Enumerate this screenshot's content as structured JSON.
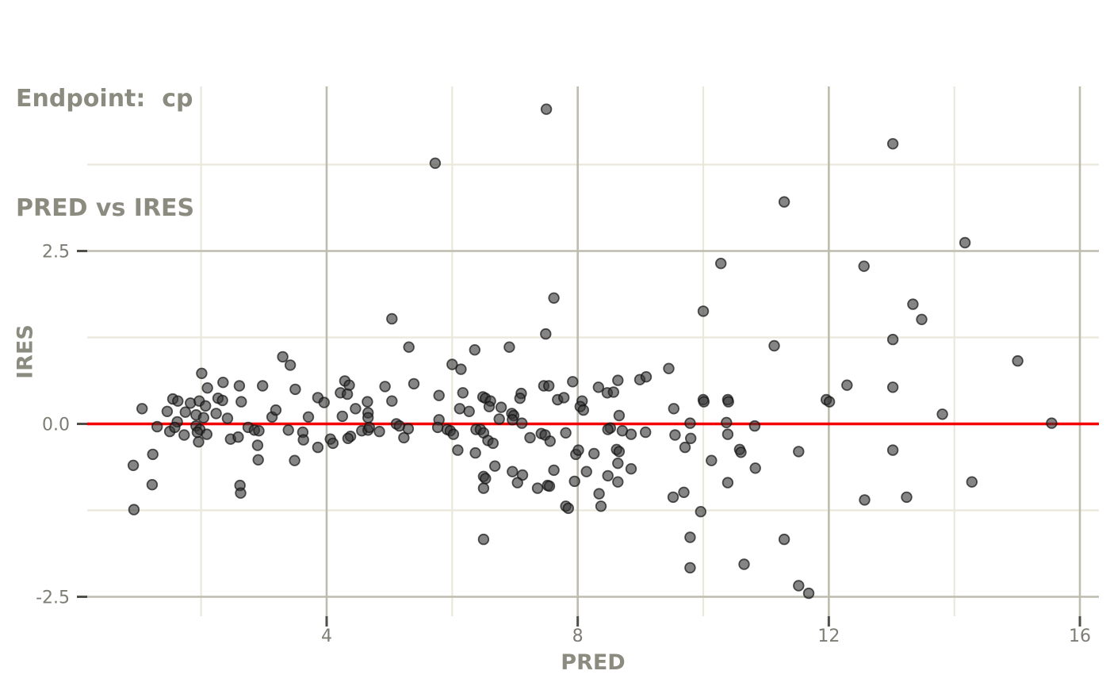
{
  "title": {
    "line1": "Endpoint:  cp",
    "line2": "PRED vs IRES"
  },
  "axes": {
    "x_label": "PRED",
    "y_label": "IRES",
    "x_tick_labels": [
      "4",
      "8",
      "12",
      "16"
    ],
    "x_tick_values": [
      4,
      8,
      12,
      16
    ],
    "x_minor_values": [
      2,
      6,
      10,
      14
    ],
    "y_tick_labels": [
      "2.5",
      "0.0",
      "-2.5"
    ],
    "y_tick_values": [
      2.5,
      0.0,
      -2.5
    ],
    "y_minor_values": [
      3.75,
      1.25,
      -1.25
    ]
  },
  "colors": {
    "title_text": "#8c8b80",
    "tick_text": "#7e7d74",
    "tick_mark": "#4f4e49",
    "grid_major": "#bdbcae",
    "grid_minor": "#e9e8db",
    "reference_line": "#f40000",
    "point_fill": "#333333",
    "point_stroke": "#111111",
    "background": "#ffffff"
  },
  "chart_data": {
    "type": "scatter",
    "title": "Endpoint: cp",
    "subtitle": "PRED vs IRES",
    "xlabel": "PRED",
    "ylabel": "IRES",
    "xlim": [
      0.2,
      16.3
    ],
    "ylim": [
      -2.8,
      4.9
    ],
    "grid": "on",
    "legend": "none",
    "reference_line_y": 0,
    "points": [
      [
        3.3,
        0.97
      ],
      [
        3.42,
        0.85
      ],
      [
        2.01,
        0.73
      ],
      [
        2.35,
        0.6
      ],
      [
        2.61,
        0.55
      ],
      [
        2.1,
        0.52
      ],
      [
        2.98,
        0.55
      ],
      [
        3.5,
        0.5
      ],
      [
        1.55,
        0.36
      ],
      [
        1.63,
        0.33
      ],
      [
        1.83,
        0.3
      ],
      [
        1.97,
        0.33
      ],
      [
        2.64,
        0.32
      ],
      [
        2.07,
        0.26
      ],
      [
        2.27,
        0.37
      ],
      [
        2.34,
        0.34
      ],
      [
        1.46,
        0.18
      ],
      [
        1.06,
        0.22
      ],
      [
        1.75,
        0.17
      ],
      [
        1.92,
        0.13
      ],
      [
        2.04,
        0.09
      ],
      [
        2.24,
        0.15
      ],
      [
        2.42,
        0.08
      ],
      [
        1.62,
        0.03
      ],
      [
        1.3,
        -0.04
      ],
      [
        1.5,
        -0.11
      ],
      [
        1.58,
        -0.05
      ],
      [
        1.73,
        -0.16
      ],
      [
        1.92,
        -0.03
      ],
      [
        1.98,
        -0.08
      ],
      [
        1.94,
        -0.12
      ],
      [
        2.09,
        -0.15
      ],
      [
        1.96,
        -0.26
      ],
      [
        2.47,
        -0.22
      ],
      [
        2.59,
        -0.19
      ],
      [
        1.23,
        -0.44
      ],
      [
        0.92,
        -0.6
      ],
      [
        1.22,
        -0.88
      ],
      [
        0.93,
        -1.24
      ],
      [
        2.62,
        -0.89
      ],
      [
        2.63,
        -1.0
      ],
      [
        2.9,
        -0.31
      ],
      [
        2.91,
        -0.52
      ],
      [
        2.75,
        -0.05
      ],
      [
        2.85,
        -0.09
      ],
      [
        2.92,
        -0.1
      ],
      [
        3.13,
        0.1
      ],
      [
        3.19,
        0.2
      ],
      [
        3.39,
        -0.09
      ],
      [
        3.49,
        -0.53
      ],
      [
        3.62,
        -0.12
      ],
      [
        3.63,
        -0.23
      ],
      [
        3.71,
        0.1
      ],
      [
        3.86,
        -0.34
      ],
      [
        3.86,
        0.38
      ],
      [
        3.96,
        0.31
      ],
      [
        4.06,
        -0.22
      ],
      [
        4.1,
        -0.28
      ],
      [
        4.25,
        0.11
      ],
      [
        4.22,
        0.45
      ],
      [
        4.29,
        0.62
      ],
      [
        4.36,
        0.56
      ],
      [
        4.33,
        0.43
      ],
      [
        4.38,
        -0.18
      ],
      [
        4.34,
        -0.21
      ],
      [
        4.56,
        -0.1
      ],
      [
        4.66,
        -0.09
      ],
      [
        4.68,
        -0.05
      ],
      [
        4.84,
        -0.11
      ],
      [
        4.93,
        0.54
      ],
      [
        4.65,
        0.32
      ],
      [
        4.46,
        0.22
      ],
      [
        4.66,
        0.16
      ],
      [
        4.66,
        0.09
      ],
      [
        5.04,
        0.33
      ],
      [
        5.11,
        0.0
      ],
      [
        5.16,
        -0.03
      ],
      [
        5.23,
        -0.2
      ],
      [
        5.3,
        -0.07
      ],
      [
        5.39,
        0.58
      ],
      [
        5.79,
        0.41
      ],
      [
        5.79,
        0.06
      ],
      [
        5.77,
        -0.05
      ],
      [
        5.92,
        -0.08
      ],
      [
        5.97,
        -0.1
      ],
      [
        6.02,
        -0.15
      ],
      [
        6.0,
        0.86
      ],
      [
        6.14,
        0.79
      ],
      [
        6.17,
        0.45
      ],
      [
        6.49,
        0.39
      ],
      [
        6.53,
        0.37
      ],
      [
        6.61,
        0.33
      ],
      [
        6.59,
        0.25
      ],
      [
        6.12,
        0.22
      ],
      [
        6.27,
        0.18
      ],
      [
        6.78,
        0.24
      ],
      [
        6.75,
        0.07
      ],
      [
        6.95,
        0.15
      ],
      [
        6.98,
        0.12
      ],
      [
        6.96,
        0.06
      ],
      [
        7.1,
        0.44
      ],
      [
        7.08,
        0.37
      ],
      [
        7.11,
        0.01
      ],
      [
        7.46,
        0.55
      ],
      [
        7.54,
        0.55
      ],
      [
        7.68,
        0.35
      ],
      [
        7.78,
        0.38
      ],
      [
        7.92,
        0.61
      ],
      [
        8.07,
        0.33
      ],
      [
        8.04,
        0.25
      ],
      [
        8.09,
        0.2
      ],
      [
        8.33,
        0.53
      ],
      [
        8.47,
        0.45
      ],
      [
        8.57,
        0.46
      ],
      [
        6.09,
        -0.38
      ],
      [
        6.37,
        -0.42
      ],
      [
        6.38,
        -0.08
      ],
      [
        6.45,
        -0.08
      ],
      [
        6.5,
        -0.13
      ],
      [
        6.57,
        -0.24
      ],
      [
        6.65,
        -0.28
      ],
      [
        6.68,
        -0.61
      ],
      [
        6.5,
        -0.76
      ],
      [
        6.53,
        -0.79
      ],
      [
        6.5,
        -0.93
      ],
      [
        6.96,
        -0.69
      ],
      [
        7.12,
        -0.74
      ],
      [
        7.04,
        -0.85
      ],
      [
        7.24,
        -0.2
      ],
      [
        7.36,
        -0.93
      ],
      [
        7.52,
        -0.89
      ],
      [
        7.55,
        -0.9
      ],
      [
        7.42,
        -0.14
      ],
      [
        7.48,
        -0.16
      ],
      [
        7.56,
        -0.25
      ],
      [
        7.62,
        -0.67
      ],
      [
        7.81,
        -0.13
      ],
      [
        7.81,
        -1.19
      ],
      [
        7.85,
        -1.22
      ],
      [
        7.95,
        -0.83
      ],
      [
        7.97,
        -0.44
      ],
      [
        8.01,
        -0.38
      ],
      [
        8.14,
        -0.69
      ],
      [
        8.26,
        -0.43
      ],
      [
        8.34,
        -1.01
      ],
      [
        8.37,
        -1.19
      ],
      [
        8.48,
        -0.75
      ],
      [
        8.52,
        -0.06
      ],
      [
        8.48,
        -0.08
      ],
      [
        7.5,
        4.55
      ],
      [
        5.73,
        3.77
      ],
      [
        7.62,
        1.82
      ],
      [
        5.04,
        1.52
      ],
      [
        7.49,
        1.3
      ],
      [
        5.31,
        1.11
      ],
      [
        6.36,
        1.07
      ],
      [
        6.91,
        1.11
      ],
      [
        11.29,
        3.21
      ],
      [
        10.28,
        2.32
      ],
      [
        12.56,
        2.28
      ],
      [
        10.0,
        1.63
      ],
      [
        11.13,
        1.13
      ],
      [
        13.02,
        4.05
      ],
      [
        14.17,
        2.62
      ],
      [
        13.34,
        1.73
      ],
      [
        13.48,
        1.51
      ],
      [
        13.02,
        1.22
      ],
      [
        9.45,
        0.8
      ],
      [
        8.64,
        0.63
      ],
      [
        8.99,
        0.64
      ],
      [
        9.09,
        0.68
      ],
      [
        10.0,
        0.35
      ],
      [
        10.01,
        0.32
      ],
      [
        10.39,
        0.35
      ],
      [
        10.4,
        0.32
      ],
      [
        9.53,
        0.22
      ],
      [
        8.66,
        0.12
      ],
      [
        9.79,
        0.01
      ],
      [
        10.37,
        0.02
      ],
      [
        10.39,
        -0.15
      ],
      [
        10.82,
        -0.03
      ],
      [
        8.71,
        -0.1
      ],
      [
        8.85,
        -0.15
      ],
      [
        9.08,
        -0.12
      ],
      [
        9.55,
        -0.16
      ],
      [
        9.8,
        -0.21
      ],
      [
        9.71,
        -0.34
      ],
      [
        8.62,
        -0.37
      ],
      [
        8.66,
        -0.4
      ],
      [
        10.58,
        -0.37
      ],
      [
        10.6,
        -0.41
      ],
      [
        11.52,
        -0.4
      ],
      [
        8.64,
        -0.57
      ],
      [
        10.13,
        -0.53
      ],
      [
        8.85,
        -0.65
      ],
      [
        10.83,
        -0.64
      ],
      [
        8.64,
        -0.84
      ],
      [
        10.39,
        -0.85
      ],
      [
        9.52,
        -1.06
      ],
      [
        9.69,
        -0.99
      ],
      [
        12.57,
        -1.1
      ],
      [
        9.96,
        -1.27
      ],
      [
        11.96,
        0.35
      ],
      [
        12.01,
        0.32
      ],
      [
        12.29,
        0.56
      ],
      [
        15.01,
        0.91
      ],
      [
        13.02,
        0.53
      ],
      [
        13.81,
        0.14
      ],
      [
        15.55,
        0.01
      ],
      [
        13.02,
        -0.38
      ],
      [
        14.28,
        -0.84
      ],
      [
        13.24,
        -1.06
      ],
      [
        6.5,
        -1.67
      ],
      [
        9.79,
        -1.64
      ],
      [
        9.79,
        -2.08
      ],
      [
        10.65,
        -2.03
      ],
      [
        11.29,
        -1.67
      ],
      [
        11.52,
        -2.34
      ],
      [
        11.68,
        -2.45
      ]
    ]
  }
}
